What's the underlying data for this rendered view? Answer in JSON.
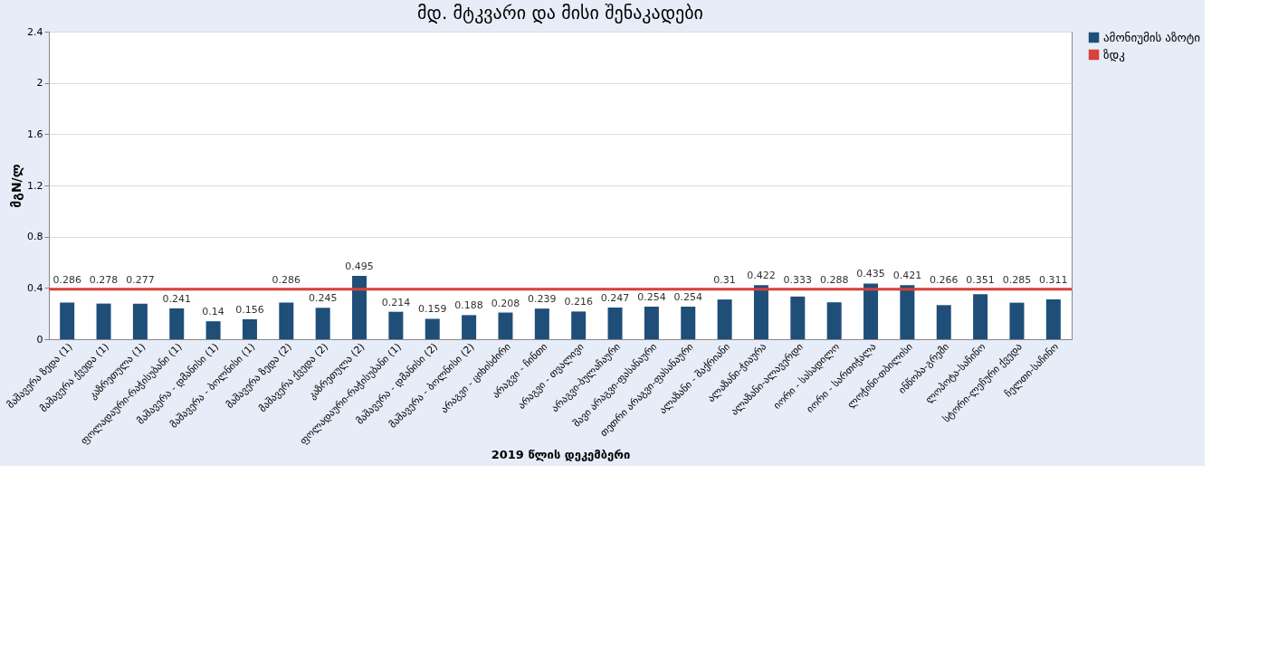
{
  "chart_data": {
    "type": "bar",
    "title": "მდ. მტკვარი და მისი შენაკადები",
    "xlabel": "2019 წლის დეკემბერი",
    "ylabel": "მგN/ლ",
    "categories": [
      "მაშავერა ზედა (1)",
      "მაშავერა ქვედა (1)",
      "კაზრეთულა (1)",
      "ფოლადაური-რაჭისუბანი (1)",
      "მაშავერა - დმანისი (1)",
      "მაშავერა - ბოლნისი (1)",
      "მაშავერა ზედა (2)",
      "მაშავერა ქვედა (2)",
      "კაზრეთულა (2)",
      "ფოლადაური-რაჭისუბანი (1)",
      "მაშავერა - დმანისი (2)",
      "მაშავერა - ბოლნისი (2)",
      "არაგვი - ციხისძირი",
      "არაგვი - ჩინთი",
      "არაგვი - თვალივი",
      "არაგვი-ბულაჩაური",
      "შავი არაგვი-ფასანაური",
      "თეთრი არაგვი-ფასანაური",
      "ალაზანი - შაქრიანი",
      "ალაზანი-ჭიაურა",
      "ალაზანი-ალავერდი",
      "იორი - სასადილო",
      "იორი - სართიჭალა",
      "ლოჭინი-თბილისი",
      "ინწობა-გრემი",
      "ლოპოტა-საჩინო",
      "სტორი-ლეჩური ქვედა",
      "ჩელთი-საჩინო"
    ],
    "series": [
      {
        "name": "ამონიუმის აზოტი",
        "color": "#1f4e79",
        "values": [
          0.286,
          0.278,
          0.277,
          0.241,
          0.14,
          0.156,
          0.286,
          0.245,
          0.495,
          0.214,
          0.159,
          0.188,
          0.208,
          0.239,
          0.216,
          0.247,
          0.254,
          0.254,
          0.31,
          0.422,
          0.333,
          0.288,
          0.435,
          0.421,
          0.266,
          0.351,
          0.285,
          0.311
        ]
      }
    ],
    "ref_lines": [
      {
        "axis": "y",
        "value": 0.39,
        "label": "ზდკ",
        "color": "#d9413b"
      }
    ],
    "ylim": [
      0,
      2.4
    ],
    "yticks": [
      0,
      0.4,
      0.8,
      1.2,
      1.6,
      2,
      2.4
    ],
    "data_labels": true,
    "grid": "y",
    "legend": "right"
  }
}
